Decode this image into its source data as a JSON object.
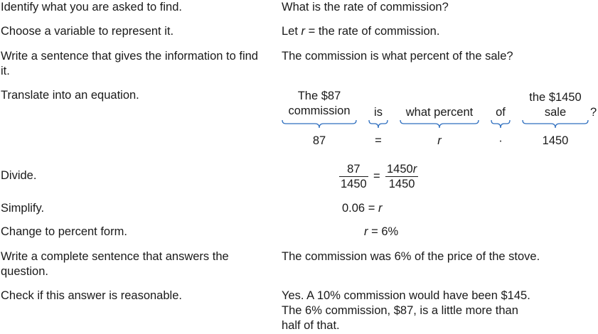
{
  "steps": [
    {
      "label": "Identify what you are asked to find.",
      "answer": "What is the rate of commission?"
    },
    {
      "label": "Choose a variable to represent it.",
      "answer_prefix": "Let",
      "answer_var": "r",
      "answer_suffix": "= the rate of commission."
    },
    {
      "label": "Write a sentence that gives the information to find it.",
      "answer": "The commission is what percent of the sale?"
    },
    {
      "label": "Translate into an equation."
    },
    {
      "label": "Divide."
    },
    {
      "label": "Simplify."
    },
    {
      "label": "Change to percent form."
    },
    {
      "label": "Write a complete sentence that answers the question.",
      "answer": "The commission was 6% of the price of the stove."
    },
    {
      "label": "Check if this answer is reasonable.",
      "answer_lines": [
        "Yes. A 10% commission would have been $145.",
        "The 6% commission, $87, is a little more than",
        "half of that."
      ]
    }
  ],
  "translate": {
    "words": [
      {
        "text_line1": "The $87",
        "text_line2": "commission"
      },
      {
        "text": "is"
      },
      {
        "text": "what percent"
      },
      {
        "text": "of"
      },
      {
        "text_line1": "the $1450",
        "text_line2": "sale"
      }
    ],
    "question_mark": "?",
    "symbols": [
      "87",
      "=",
      "r",
      "·",
      "1450"
    ]
  },
  "divide": {
    "lhs_num": "87",
    "lhs_den": "1450",
    "eq": "=",
    "rhs_num": "1450",
    "rhs_num_var": "r",
    "rhs_den": "1450"
  },
  "simplify": {
    "lhs": "0.06",
    "eq": "=",
    "rhs": "r"
  },
  "percent": {
    "lhs": "r",
    "eq": "=",
    "rhs": "6%"
  },
  "colors": {
    "brace": "#2f6fbf",
    "text": "#1a1a1a"
  }
}
